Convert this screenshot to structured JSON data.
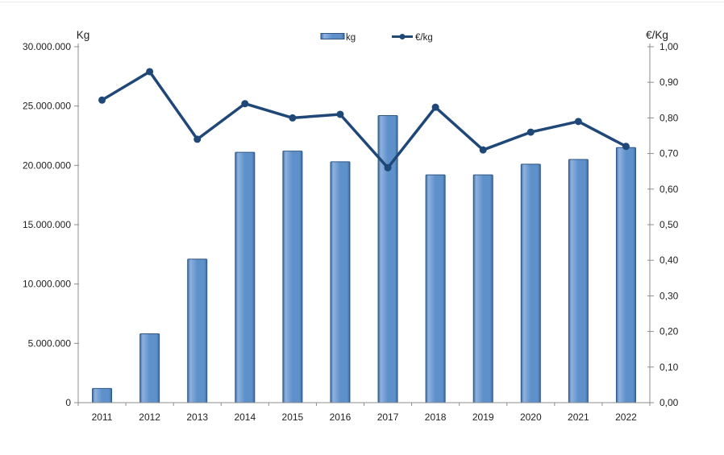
{
  "chart_data": {
    "type": "combo-bar-line",
    "title": "",
    "categories": [
      "2011",
      "2012",
      "2013",
      "2014",
      "2015",
      "2016",
      "2017",
      "2018",
      "2019",
      "2020",
      "2021",
      "2022"
    ],
    "series": [
      {
        "name": "kg",
        "type": "bar",
        "axis": "left",
        "values": [
          1200000,
          5800000,
          12100000,
          21100000,
          21200000,
          20300000,
          24200000,
          19200000,
          19200000,
          20100000,
          20500000,
          21500000
        ]
      },
      {
        "name": "€/kg",
        "type": "line",
        "axis": "right",
        "values": [
          0.85,
          0.93,
          0.74,
          0.84,
          0.8,
          0.81,
          0.66,
          0.83,
          0.71,
          0.76,
          0.79,
          0.72
        ]
      }
    ],
    "left_axis": {
      "title": "Kg",
      "min": 0,
      "max": 30000000,
      "step": 5000000,
      "tick_labels": [
        "0",
        "5.000.000",
        "10.000.000",
        "15.000.000",
        "20.000.000",
        "25.000.000",
        "30.000.000"
      ]
    },
    "right_axis": {
      "title": "€/Kg",
      "min": 0,
      "max": 1,
      "step": 0.1,
      "tick_labels": [
        "0,00",
        "0,10",
        "0,20",
        "0,30",
        "0,40",
        "0,50",
        "0,60",
        "0,70",
        "0,80",
        "0,90",
        "1,00"
      ]
    },
    "legend": {
      "position": "top-center",
      "items": [
        {
          "label": "kg",
          "marker": "bar"
        },
        {
          "label": "€/kg",
          "marker": "line-dot"
        }
      ]
    },
    "gridlines": false
  },
  "colors": {
    "bar_fill_light": "#8FB2DF",
    "bar_fill_mid": "#5E90CA",
    "bar_fill_dark": "#3D6BA1",
    "bar_border": "#2E5784",
    "line": "#1F4878",
    "axis": "#8C8C8C",
    "text": "#1F1F1F",
    "background": "#FFFFFF",
    "top_border": "#E9E9E9"
  }
}
